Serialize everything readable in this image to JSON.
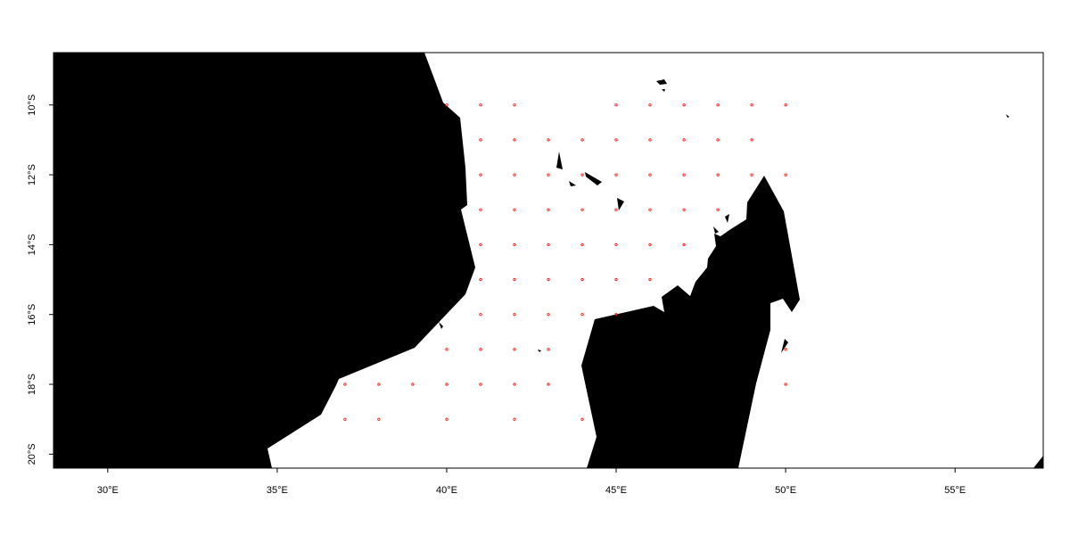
{
  "map": {
    "colors": {
      "land": "#000000",
      "sea": "#ffffff",
      "frame": "#000000",
      "points": "#ff0000"
    },
    "x_range_deg": [
      28.4,
      57.6
    ],
    "y_range_deg": [
      -20.4,
      -8.5
    ],
    "x_ticks": [
      {
        "value": 30,
        "label": "30°E"
      },
      {
        "value": 35,
        "label": "35°E"
      },
      {
        "value": 40,
        "label": "40°E"
      },
      {
        "value": 45,
        "label": "45°E"
      },
      {
        "value": 50,
        "label": "50°E"
      },
      {
        "value": 55,
        "label": "55°E"
      }
    ],
    "y_ticks": [
      {
        "value": -10,
        "label": "10°S"
      },
      {
        "value": -12,
        "label": "12°S"
      },
      {
        "value": -14,
        "label": "14°S"
      },
      {
        "value": -16,
        "label": "16°S"
      },
      {
        "value": -18,
        "label": "18°S"
      },
      {
        "value": -20,
        "label": "20°S"
      }
    ],
    "grid_points": [
      [
        40,
        -10
      ],
      [
        41,
        -10
      ],
      [
        42,
        -10
      ],
      [
        45,
        -10
      ],
      [
        46,
        -10
      ],
      [
        47,
        -10
      ],
      [
        48,
        -10
      ],
      [
        49,
        -10
      ],
      [
        50,
        -10
      ],
      [
        41,
        -11
      ],
      [
        42,
        -11
      ],
      [
        43,
        -11
      ],
      [
        44,
        -11
      ],
      [
        45,
        -11
      ],
      [
        46,
        -11
      ],
      [
        47,
        -11
      ],
      [
        48,
        -11
      ],
      [
        49,
        -11
      ],
      [
        41,
        -12
      ],
      [
        42,
        -12
      ],
      [
        43,
        -12
      ],
      [
        44,
        -12
      ],
      [
        45,
        -12
      ],
      [
        46,
        -12
      ],
      [
        47,
        -12
      ],
      [
        48,
        -12
      ],
      [
        49,
        -12
      ],
      [
        50,
        -12
      ],
      [
        41,
        -13
      ],
      [
        42,
        -13
      ],
      [
        43,
        -13
      ],
      [
        44,
        -13
      ],
      [
        45,
        -13
      ],
      [
        46,
        -13
      ],
      [
        47,
        -13
      ],
      [
        48,
        -13
      ],
      [
        41,
        -14
      ],
      [
        42,
        -14
      ],
      [
        43,
        -14
      ],
      [
        44,
        -14
      ],
      [
        45,
        -14
      ],
      [
        46,
        -14
      ],
      [
        47,
        -14
      ],
      [
        41,
        -15
      ],
      [
        42,
        -15
      ],
      [
        43,
        -15
      ],
      [
        44,
        -15
      ],
      [
        45,
        -15
      ],
      [
        46,
        -15
      ],
      [
        41,
        -16
      ],
      [
        42,
        -16
      ],
      [
        43,
        -16
      ],
      [
        44,
        -16
      ],
      [
        45,
        -16
      ],
      [
        40,
        -17
      ],
      [
        41,
        -17
      ],
      [
        42,
        -17
      ],
      [
        43,
        -17
      ],
      [
        50,
        -17
      ],
      [
        37,
        -18
      ],
      [
        38,
        -18
      ],
      [
        39,
        -18
      ],
      [
        40,
        -18
      ],
      [
        41,
        -18
      ],
      [
        42,
        -18
      ],
      [
        43,
        -18
      ],
      [
        50,
        -18
      ],
      [
        37,
        -19
      ],
      [
        38,
        -19
      ],
      [
        40,
        -19
      ],
      [
        42,
        -19
      ],
      [
        44,
        -19
      ]
    ],
    "land_features": [
      "africa-mainland",
      "madagascar",
      "comoros-islands",
      "aldabra-atoll",
      "ile-sainte-marie",
      "mauritius-corner"
    ]
  }
}
